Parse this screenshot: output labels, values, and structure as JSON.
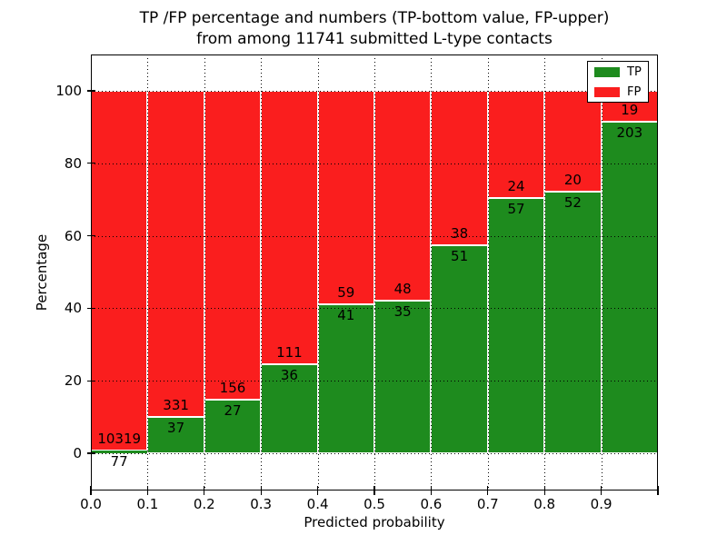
{
  "title": {
    "line1": "TP /FP percentage and numbers (TP-bottom value, FP-upper)",
    "line2": "from among 11741 submitted L-type contacts"
  },
  "axes": {
    "xlabel": "Predicted probability",
    "ylabel": "Percentage",
    "y_tick_labels": [
      "0",
      "20",
      "40",
      "60",
      "80",
      "100"
    ],
    "y_tick_values": [
      0,
      20,
      40,
      60,
      80,
      100
    ],
    "x_tick_labels": [
      "0.0",
      "0.1",
      "0.2",
      "0.3",
      "0.4",
      "0.5",
      "0.6",
      "0.7",
      "0.8",
      "0.9"
    ],
    "xlim": [
      0.0,
      1.0
    ],
    "ylim": [
      -10,
      110
    ]
  },
  "legend": {
    "entries": [
      {
        "label": "TP",
        "color": "#1e8b1e"
      },
      {
        "label": "FP",
        "color": "#fa1e1e"
      }
    ],
    "position": "upper right"
  },
  "chart_data": {
    "type": "bar",
    "stacked": true,
    "normalized_to_percent": true,
    "title": "TP /FP percentage and numbers (TP-bottom value, FP-upper) from among 11741 submitted L-type contacts",
    "xlabel": "Predicted probability",
    "ylabel": "Percentage",
    "total_contacts": 11741,
    "categories": [
      "0.0-0.1",
      "0.1-0.2",
      "0.2-0.3",
      "0.3-0.4",
      "0.4-0.5",
      "0.5-0.6",
      "0.6-0.7",
      "0.7-0.8",
      "0.8-0.9",
      "0.9-1.0"
    ],
    "series": [
      {
        "name": "TP",
        "color": "#1e8b1e",
        "counts": [
          77,
          37,
          27,
          36,
          41,
          35,
          51,
          57,
          52,
          203
        ]
      },
      {
        "name": "FP",
        "color": "#fa1e1e",
        "counts": [
          10319,
          331,
          156,
          111,
          59,
          48,
          38,
          24,
          20,
          19
        ]
      }
    ],
    "tp_percent": [
      0.74,
      10.05,
      14.75,
      24.49,
      41.0,
      42.17,
      57.3,
      70.37,
      72.22,
      91.44
    ],
    "bar_edge_color": "#ffffff",
    "grid": true,
    "grid_style": "dotted",
    "ylim": [
      -10,
      110
    ],
    "legend_position": "upper right"
  }
}
